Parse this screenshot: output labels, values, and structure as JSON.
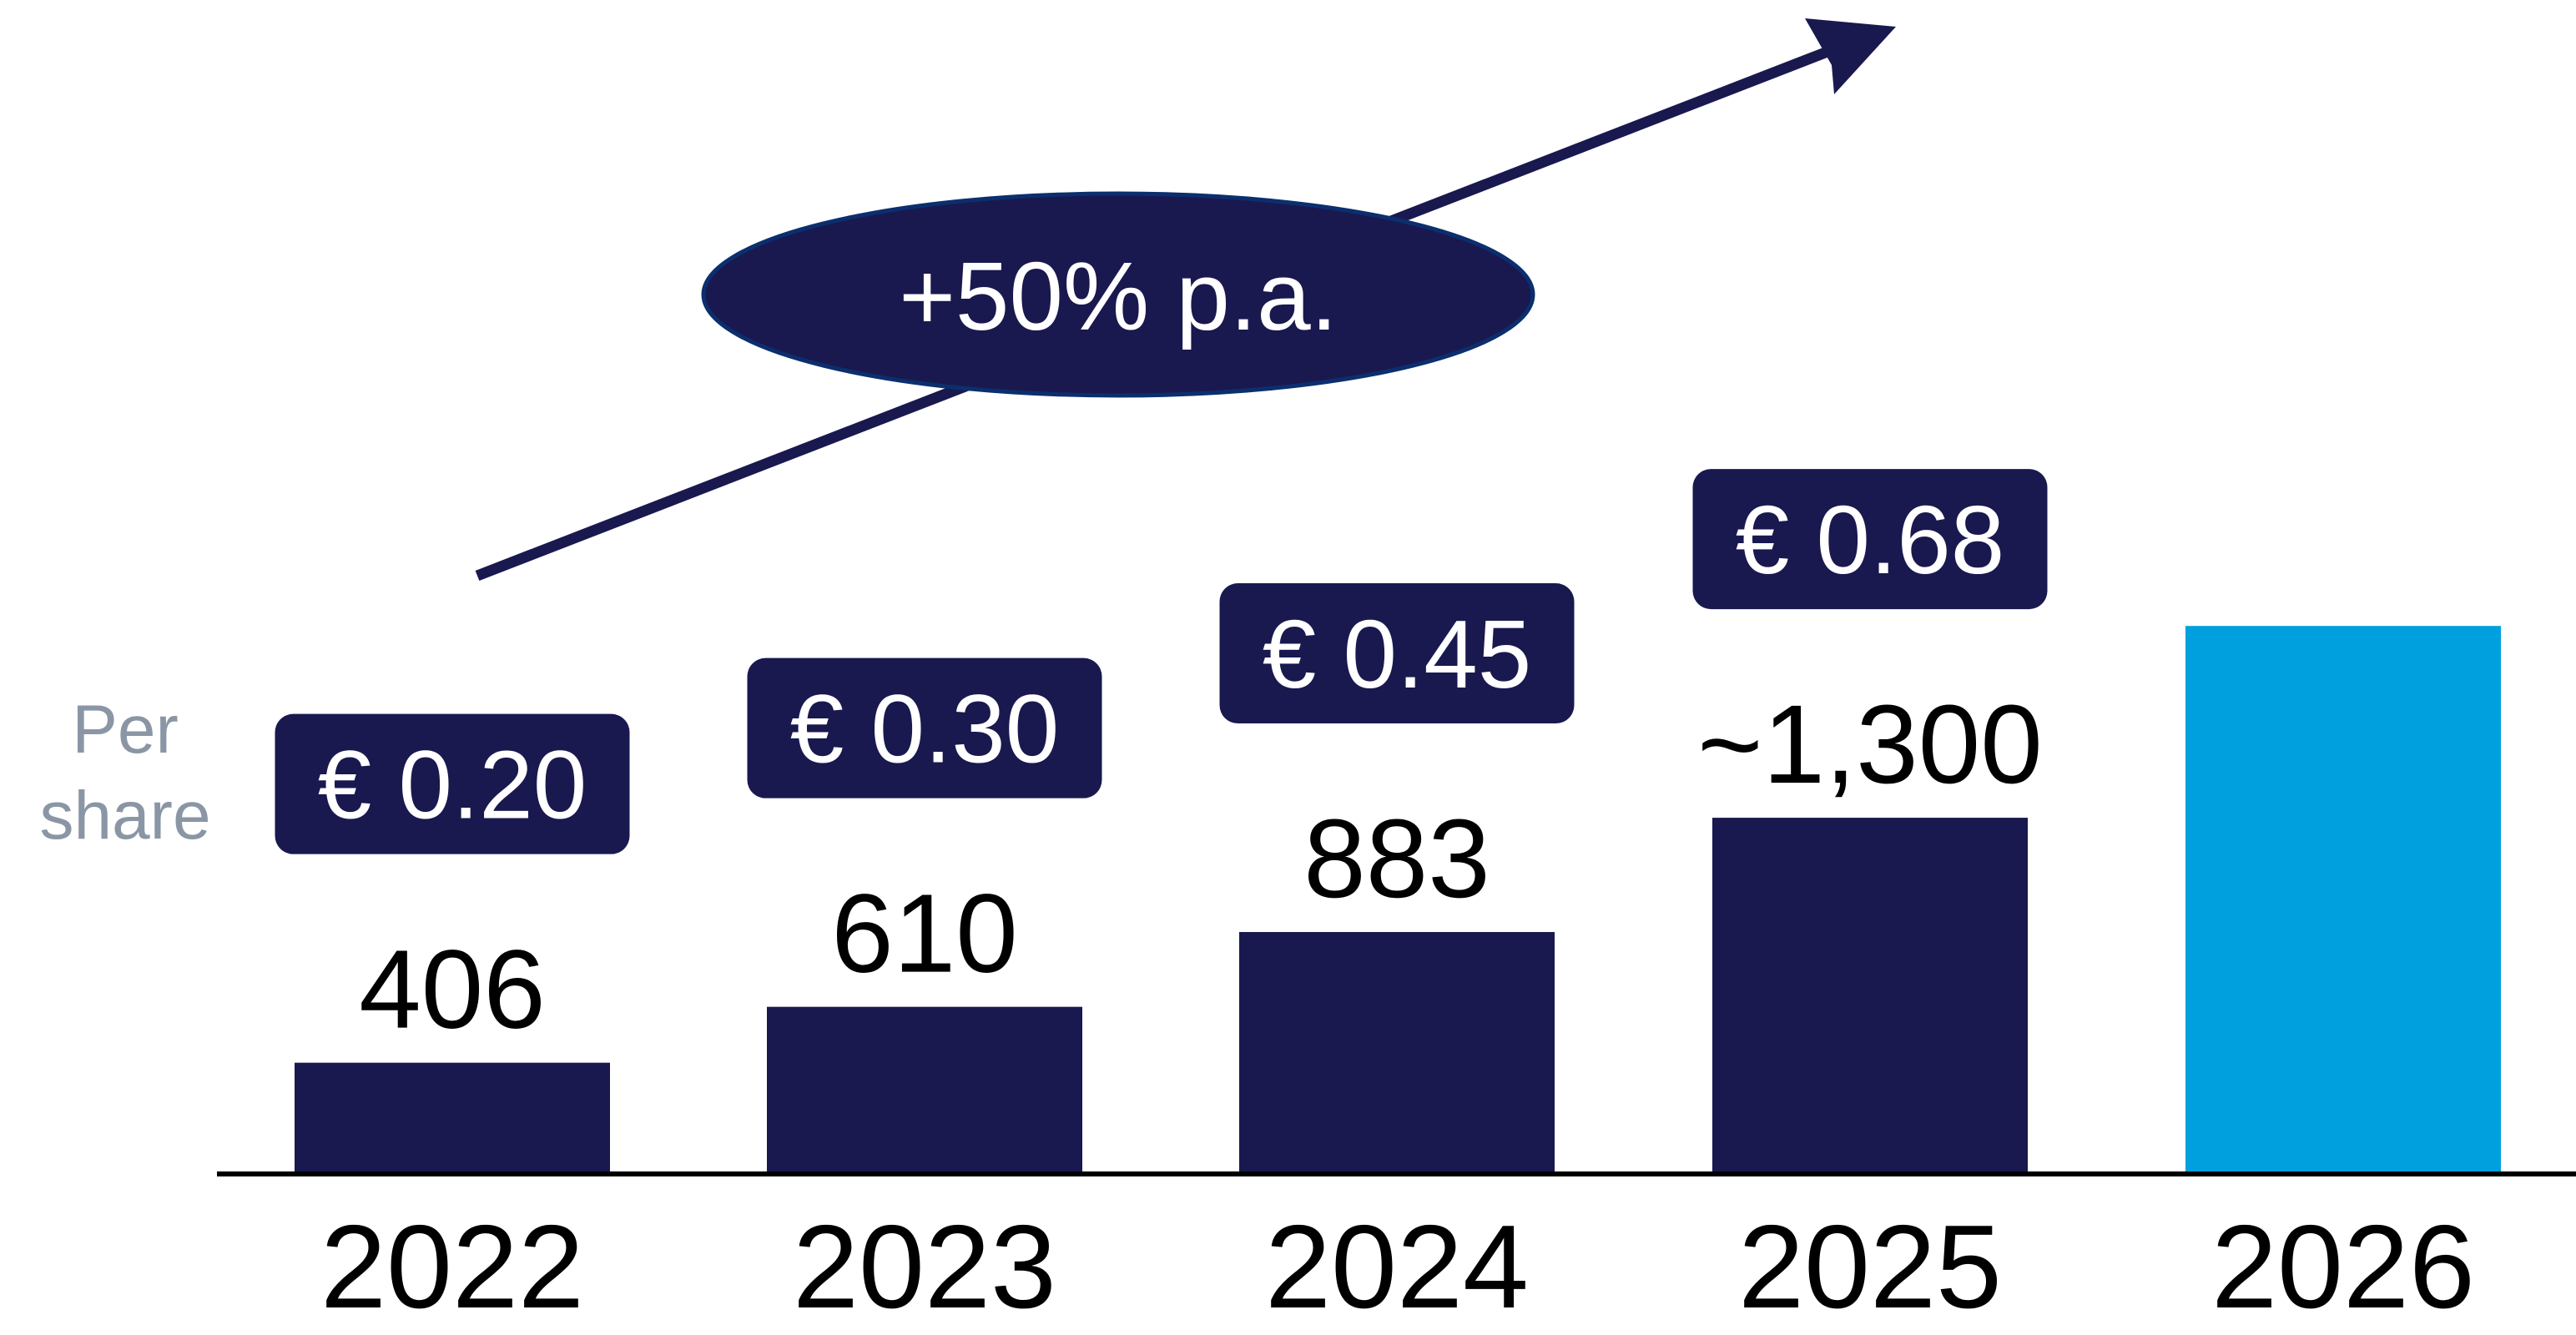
{
  "chart_data": {
    "type": "bar",
    "categories": [
      "2022",
      "2023",
      "2024",
      "2025",
      "2026"
    ],
    "values": [
      406,
      610,
      883,
      1300,
      2000
    ],
    "value_labels": [
      "406",
      "610",
      "883",
      "~1,300",
      ""
    ],
    "per_share_labels": [
      "€ 0.20",
      "€ 0.30",
      "€ 0.45",
      "€ 0.68",
      ""
    ],
    "ylim": [
      0,
      2000
    ],
    "grid": false,
    "legend": "none",
    "title": "",
    "xlabel": "",
    "ylabel": "",
    "side_label_lines": [
      "Per",
      "share"
    ],
    "growth_label": "+50% p.a.",
    "colors": {
      "bar": "#19194f",
      "bar_highlight": "#00a0df",
      "badge": "#19194f",
      "side_label": "#8a96a5",
      "axis": "#000000"
    },
    "highlight_index": 4
  }
}
